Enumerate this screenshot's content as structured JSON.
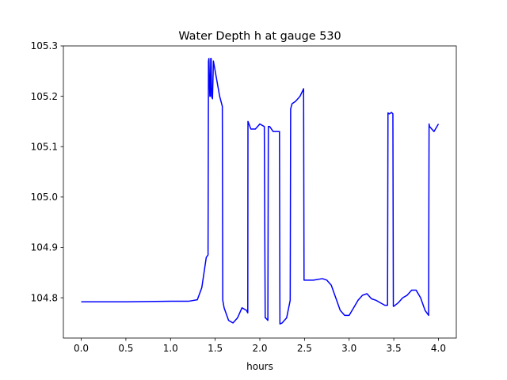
{
  "chart_data": {
    "type": "line",
    "title": "Water Depth h at gauge 530",
    "xlabel": "hours",
    "ylabel": "",
    "xlim": [
      -0.2,
      4.2
    ],
    "ylim": [
      104.72,
      105.3
    ],
    "xticks": [
      0.0,
      0.5,
      1.0,
      1.5,
      2.0,
      2.5,
      3.0,
      3.5,
      4.0
    ],
    "xtick_labels": [
      "0.0",
      "0.5",
      "1.0",
      "1.5",
      "2.0",
      "2.5",
      "3.0",
      "3.5",
      "4.0"
    ],
    "yticks": [
      104.8,
      104.9,
      105.0,
      105.1,
      105.2,
      105.3
    ],
    "ytick_labels": [
      "104.8",
      "104.9",
      "105.0",
      "105.1",
      "105.2",
      "105.3"
    ],
    "grid": false,
    "series": [
      {
        "color": "#0000ff",
        "x": [
          0.0,
          0.5,
          1.0,
          1.2,
          1.3,
          1.35,
          1.4,
          1.42,
          1.425,
          1.43,
          1.44,
          1.445,
          1.45,
          1.455,
          1.46,
          1.47,
          1.48,
          1.55,
          1.58,
          1.585,
          1.6,
          1.65,
          1.7,
          1.75,
          1.8,
          1.85,
          1.865,
          1.867,
          1.9,
          1.95,
          2.0,
          2.05,
          2.06,
          2.065,
          2.09,
          2.095,
          2.11,
          2.15,
          2.2,
          2.22,
          2.225,
          2.25,
          2.3,
          2.34,
          2.345,
          2.36,
          2.4,
          2.45,
          2.49,
          2.495,
          2.52,
          2.6,
          2.7,
          2.75,
          2.8,
          2.85,
          2.9,
          2.95,
          3.0,
          3.05,
          3.1,
          3.15,
          3.2,
          3.25,
          3.3,
          3.35,
          3.4,
          3.43,
          3.435,
          3.45,
          3.475,
          3.49,
          3.495,
          3.5,
          3.55,
          3.6,
          3.65,
          3.7,
          3.75,
          3.8,
          3.85,
          3.89,
          3.895,
          3.9,
          3.95,
          4.0
        ],
        "y": [
          104.792,
          104.792,
          104.793,
          104.793,
          104.796,
          104.82,
          104.88,
          104.885,
          105.27,
          105.275,
          105.2,
          105.2,
          105.275,
          105.275,
          105.2,
          105.195,
          105.27,
          105.2,
          105.18,
          104.795,
          104.78,
          104.755,
          104.75,
          104.76,
          104.78,
          104.775,
          104.77,
          105.15,
          105.135,
          105.135,
          105.145,
          105.14,
          104.76,
          104.76,
          104.755,
          105.14,
          105.14,
          105.13,
          105.13,
          105.13,
          104.748,
          104.75,
          104.76,
          104.795,
          105.175,
          105.185,
          105.19,
          105.2,
          105.215,
          104.835,
          104.835,
          104.835,
          104.838,
          104.835,
          104.825,
          104.8,
          104.775,
          104.765,
          104.765,
          104.78,
          104.795,
          104.805,
          104.808,
          104.798,
          104.795,
          104.79,
          104.785,
          104.785,
          105.167,
          105.165,
          105.168,
          105.165,
          104.783,
          104.783,
          104.79,
          104.8,
          104.805,
          104.815,
          104.815,
          104.8,
          104.775,
          104.765,
          105.145,
          105.14,
          105.13,
          105.145
        ]
      }
    ]
  }
}
